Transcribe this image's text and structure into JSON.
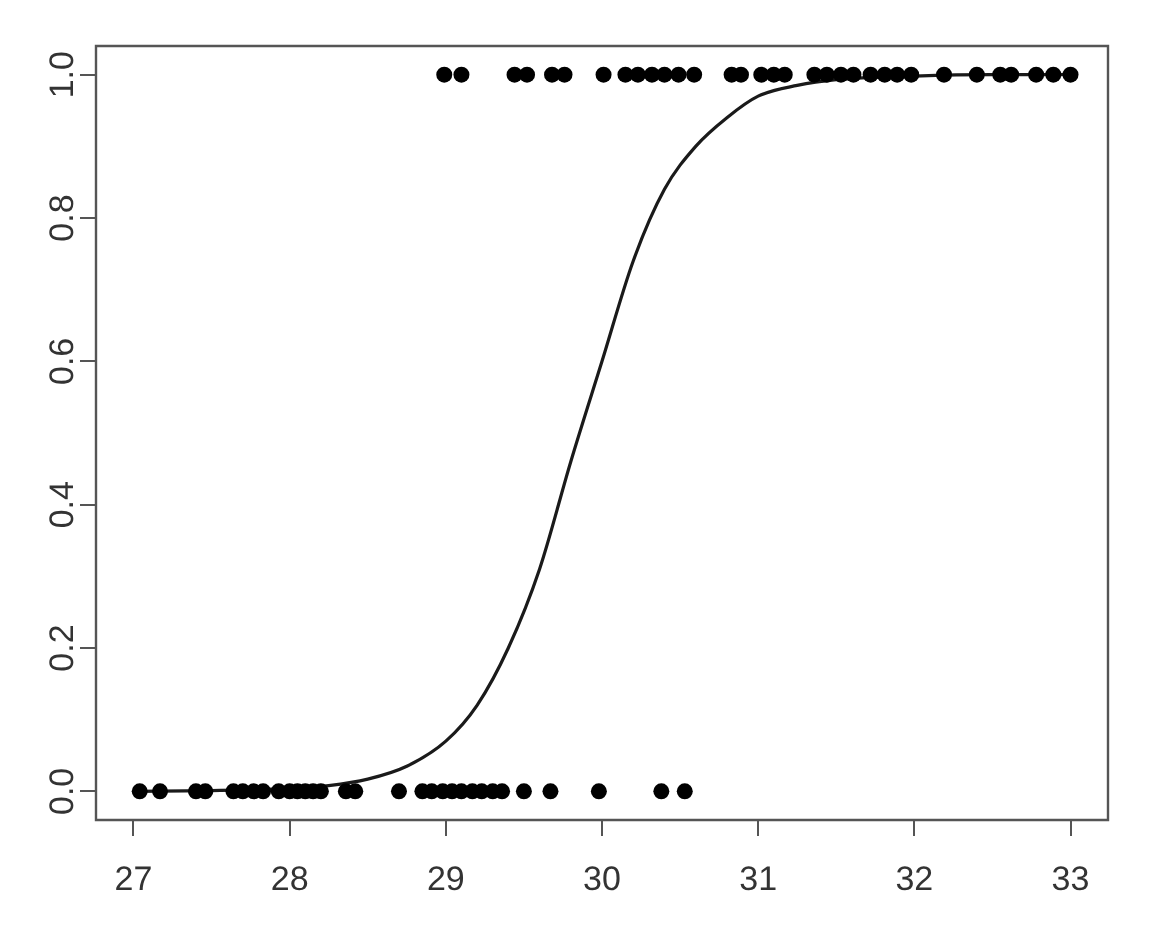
{
  "chart_data": {
    "type": "scatter",
    "series": [
      {
        "type": "scatter",
        "color": "#000000",
        "marker": "circle",
        "x": [
          28.99,
          29.1,
          29.44,
          29.52,
          29.68,
          29.76,
          30.01,
          30.15,
          30.23,
          30.32,
          30.4,
          30.49,
          30.59,
          30.83,
          30.89,
          31.02,
          31.1,
          31.17,
          31.36,
          31.44,
          31.53,
          31.61,
          31.72,
          31.81,
          31.89,
          31.98,
          32.19,
          32.4,
          32.55,
          32.62,
          32.78,
          32.89,
          33.0,
          27.04,
          27.17,
          27.4,
          27.46,
          27.64,
          27.7,
          27.77,
          27.83,
          27.93,
          28.0,
          28.05,
          28.1,
          28.15,
          28.2,
          28.36,
          28.42,
          28.7,
          28.85,
          28.91,
          28.98,
          29.04,
          29.1,
          29.17,
          29.23,
          29.3,
          29.36,
          29.5,
          29.67,
          29.98,
          30.38,
          30.53
        ],
        "values": [
          1,
          1,
          1,
          1,
          1,
          1,
          1,
          1,
          1,
          1,
          1,
          1,
          1,
          1,
          1,
          1,
          1,
          1,
          1,
          1,
          1,
          1,
          1,
          1,
          1,
          1,
          1,
          1,
          1,
          1,
          1,
          1,
          1,
          0,
          0,
          0,
          0,
          0,
          0,
          0,
          0,
          0,
          0,
          0,
          0,
          0,
          0,
          0,
          0,
          0,
          0,
          0,
          0,
          0,
          0,
          0,
          0,
          0,
          0,
          0,
          0,
          0,
          0,
          0
        ]
      },
      {
        "type": "line",
        "color": "#1a1a1a",
        "marker": "none",
        "line_style": "solid",
        "x": [
          27,
          27.5,
          28,
          28.25,
          28.5,
          28.75,
          29,
          29.2,
          29.4,
          29.6,
          29.8,
          30,
          30.2,
          30.4,
          30.6,
          30.8,
          31,
          31.25,
          31.5,
          32,
          32.5,
          33
        ],
        "values": [
          0,
          0.001,
          0.004,
          0.008,
          0.017,
          0.035,
          0.07,
          0.12,
          0.2,
          0.31,
          0.46,
          0.6,
          0.74,
          0.84,
          0.9,
          0.94,
          0.97,
          0.985,
          0.993,
          0.998,
          1,
          1
        ]
      }
    ],
    "xlim": [
      26.76,
      33.24
    ],
    "ylim": [
      -0.04,
      1.04
    ],
    "xticks": [
      27,
      28,
      29,
      30,
      31,
      32,
      33
    ],
    "yticks": [
      {
        "value": 0,
        "label": "0.0"
      },
      {
        "value": 0.2,
        "label": "0.2"
      },
      {
        "value": 0.4,
        "label": "0.4"
      },
      {
        "value": 0.6,
        "label": "0.6"
      },
      {
        "value": 0.8,
        "label": "0.8"
      },
      {
        "value": 1,
        "label": "1.0"
      }
    ],
    "grid": false,
    "legend": false
  }
}
